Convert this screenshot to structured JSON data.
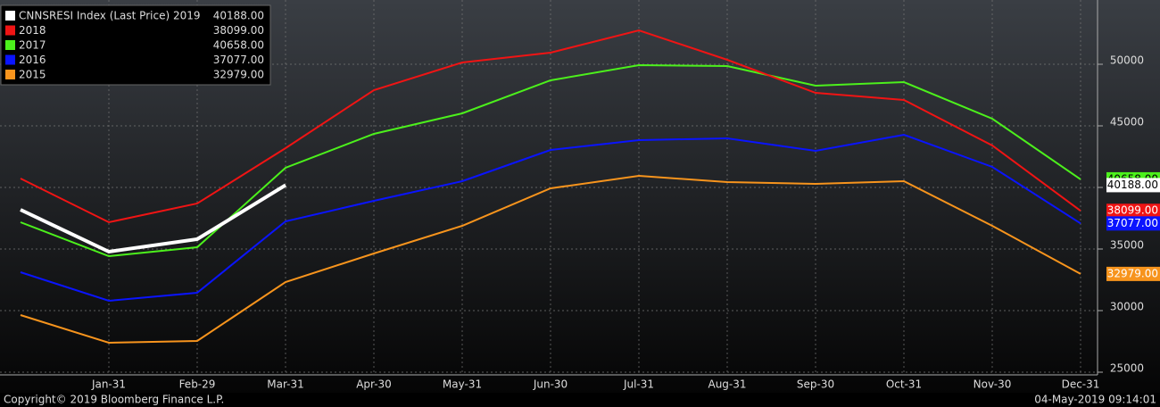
{
  "chart_data": {
    "type": "line",
    "categories": [
      null,
      "Jan-31",
      "Feb-29",
      "Mar-31",
      "Apr-30",
      "May-31",
      "Jun-30",
      "Jul-31",
      "Aug-31",
      "Sep-30",
      "Oct-31",
      "Nov-30",
      "Dec-31"
    ],
    "series": [
      {
        "name": "2015",
        "color": "#f7941d",
        "last_label": "32979.00",
        "values": [
          29638,
          27391,
          27536,
          32319,
          34638,
          36884,
          39928,
          40942,
          40435,
          40290,
          40507,
          36884,
          32979
        ]
      },
      {
        "name": "2016",
        "color": "#0a14ff",
        "last_label": "37077.00",
        "values": [
          33116,
          30797,
          31449,
          37246,
          38913,
          40507,
          43043,
          43841,
          43986,
          42971,
          44275,
          41667,
          37077
        ]
      },
      {
        "name": "2017",
        "color": "#4cf01c",
        "last_label": "40658.00",
        "values": [
          37174,
          34420,
          35145,
          41594,
          44348,
          46015,
          48696,
          49928,
          49855,
          48261,
          48551,
          45580,
          40658
        ]
      },
      {
        "name": "2018",
        "color": "#f01414",
        "last_label": "38099.00",
        "values": [
          40725,
          37174,
          38696,
          43188,
          47899,
          50145,
          50942,
          52754,
          50362,
          47681,
          47101,
          43406,
          38099
        ]
      },
      {
        "name": "CNNSRESI Index (Last Price) 2019",
        "color": "#ffffff",
        "last_label": "40188.00",
        "values": [
          38188,
          34783,
          35797,
          40188,
          null,
          null,
          null,
          null,
          null,
          null,
          null,
          null,
          null
        ]
      }
    ],
    "ylim": [
      25000,
      55000
    ],
    "yticks": [
      25000,
      30000,
      35000,
      40000,
      45000,
      50000
    ],
    "ytick_labels_shown": [
      25000,
      30000,
      35000,
      45000,
      50000
    ],
    "grid": true,
    "legend": "top-left",
    "footer_left": "Copyright© 2019 Bloomberg Finance L.P.",
    "footer_right": "04-May-2019 09:14:01"
  }
}
